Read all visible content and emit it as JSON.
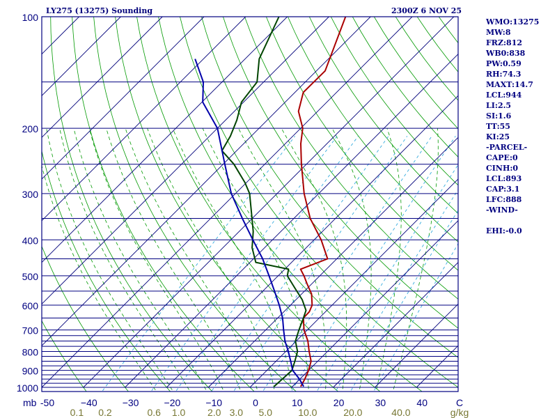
{
  "header": {
    "station_title": "LY275 (13275) Sounding",
    "valid_time": "2300Z  6 NOV 25"
  },
  "stats": [
    "WMO:13275",
    "MW:8",
    "FRZ:812",
    "WB0:838",
    "PW:0.59",
    "RH:74.3",
    "MAXT:14.7",
    "LCL:944",
    "LI:2.5",
    "SI:1.6",
    "TT:55",
    "KI:25",
    "-PARCEL-",
    "CAPE:0",
    "CINH:0",
    "LCL:893",
    "CAP:3.1",
    "LFC:888",
    "-WIND-",
    "",
    "EHI:-0.0"
  ],
  "colors": {
    "frame": "#000080",
    "isobar": "#000080",
    "isotherm": "#00007a",
    "dry_adiabat": "#009900",
    "moist_adiabat": "#009900",
    "mixing_ratio": "#33aadd",
    "temperature": "#aa0000",
    "dewpoint": "#004400",
    "parcel": "#0000aa",
    "tick_text": "#000080",
    "mixing_ratio_text": "#777733"
  },
  "chart_data": {
    "type": "line",
    "title": "LY275 (13275) Sounding",
    "xlabel": "°C",
    "ylabel": "mb",
    "pressure_range_mb": [
      1000,
      100
    ],
    "temperature_range_c": [
      -50,
      50
    ],
    "unit_labels": {
      "pressure": "mb",
      "temperature": "C",
      "mixing_ratio": "g/kg"
    },
    "pressure_ticks": [
      {
        "p": 1000,
        "label": "1000"
      },
      {
        "p": 900,
        "label": "900"
      },
      {
        "p": 800,
        "label": "800"
      },
      {
        "p": 700,
        "label": "700"
      },
      {
        "p": 600,
        "label": "600"
      },
      {
        "p": 500,
        "label": "500"
      },
      {
        "p": 400,
        "label": "400"
      },
      {
        "p": 300,
        "label": "300"
      },
      {
        "p": 200,
        "label": "200"
      },
      {
        "p": 100,
        "label": "100"
      }
    ],
    "isobars_mb": [
      1000,
      975,
      950,
      925,
      900,
      875,
      850,
      825,
      800,
      775,
      750,
      725,
      700,
      650,
      600,
      550,
      500,
      450,
      400,
      350,
      300,
      250,
      200,
      150,
      100
    ],
    "temperature_ticks": [
      {
        "t": -50,
        "label": "-50"
      },
      {
        "t": -40,
        "label": "−40"
      },
      {
        "t": -30,
        "label": "−30"
      },
      {
        "t": -20,
        "label": "−20"
      },
      {
        "t": -10,
        "label": "−10"
      },
      {
        "t": 0,
        "label": "0"
      },
      {
        "t": 10,
        "label": "10"
      },
      {
        "t": 20,
        "label": "20"
      },
      {
        "t": 30,
        "label": "30"
      },
      {
        "t": 40,
        "label": "40"
      }
    ],
    "mixing_ratio_labels": [
      {
        "w": 0.1,
        "label": "0.1"
      },
      {
        "w": 0.2,
        "label": "0.2"
      },
      {
        "w": 0.6,
        "label": "0.6"
      },
      {
        "w": 1.0,
        "label": "1.0"
      },
      {
        "w": 2.0,
        "label": "2.0"
      },
      {
        "w": 3.0,
        "label": "3.0"
      },
      {
        "w": 5.0,
        "label": "5.0"
      },
      {
        "w": 10.0,
        "label": "10.0"
      },
      {
        "w": 20.0,
        "label": "20.0"
      },
      {
        "w": 40.0,
        "label": "40.0"
      }
    ],
    "mixing_ratio_lines": [
      0.2,
      0.6,
      1.0,
      2.0,
      3.0,
      5.0,
      8.0,
      12.0,
      16.0,
      20.0,
      28.0
    ],
    "series": [
      {
        "name": "Temperature",
        "p": [
          995,
          950,
          900,
          850,
          800,
          750,
          700,
          650,
          625,
          600,
          560,
          525,
          500,
          480,
          450,
          400,
          350,
          300,
          250,
          220,
          200,
          180,
          160,
          140,
          100
        ],
        "t": [
          12.0,
          11.2,
          10.0,
          8.4,
          5.6,
          2.8,
          -0.8,
          -3.8,
          -3.9,
          -4.8,
          -7.6,
          -11.2,
          -13.8,
          -16.2,
          -12.2,
          -18.3,
          -26.1,
          -33.5,
          -41.2,
          -46.3,
          -49.5,
          -54.6,
          -58.0,
          -57.9,
          -66.0
        ]
      },
      {
        "name": "Dewpoint",
        "p": [
          995,
          950,
          900,
          850,
          800,
          750,
          700,
          650,
          620,
          580,
          540,
          500,
          480,
          460,
          420,
          380,
          340,
          300,
          280,
          250,
          230,
          210,
          190,
          170,
          150,
          130,
          100
        ],
        "t": [
          5.6,
          5.8,
          6.0,
          4.5,
          2.8,
          -0.2,
          -2.0,
          -3.8,
          -5.0,
          -8.5,
          -13.0,
          -17.8,
          -19.1,
          -28.6,
          -33.0,
          -36.6,
          -41.3,
          -46.6,
          -50.4,
          -57.4,
          -63.5,
          -65.0,
          -67.3,
          -70.5,
          -71.6,
          -76.6,
          -82.0
        ]
      },
      {
        "name": "Parcel",
        "p": [
          995,
          950,
          900,
          850,
          800,
          750,
          700,
          650,
          600,
          550,
          500,
          450,
          400,
          350,
          300,
          250,
          200,
          170,
          150,
          130
        ],
        "t": [
          12.7,
          9.9,
          6.2,
          3.5,
          0.6,
          -2.7,
          -5.7,
          -8.8,
          -12.7,
          -17.2,
          -22.2,
          -27.8,
          -34.7,
          -42.4,
          -51.0,
          -59.6,
          -70.0,
          -79.8,
          -84.5,
          -92.0
        ]
      }
    ]
  }
}
